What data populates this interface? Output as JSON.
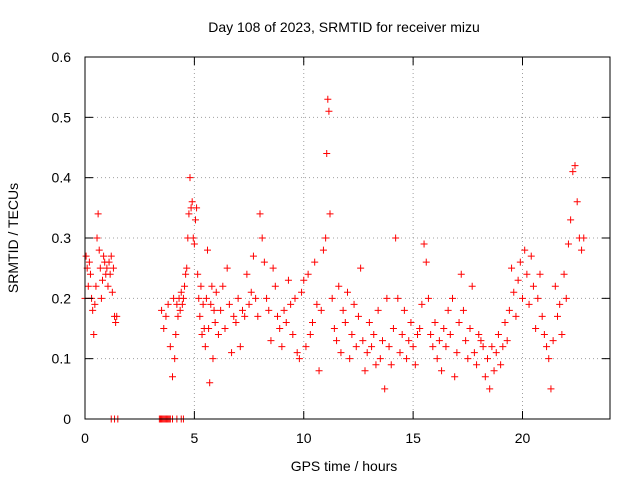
{
  "chart_data": {
    "type": "scatter",
    "title": "Day 108 of 2023, SRMTID for receiver mizu",
    "xlabel": "GPS time / hours",
    "ylabel": "SRMTID / TECUs",
    "xlim": [
      0,
      24
    ],
    "ylim": [
      0,
      0.6
    ],
    "xticks": [
      0,
      5,
      10,
      15,
      20
    ],
    "xtick_labels": [
      "0",
      "5",
      "10",
      "15",
      "20"
    ],
    "yticks": [
      0,
      0.1,
      0.2,
      0.3,
      0.4,
      0.5,
      0.6
    ],
    "ytick_labels": [
      "0",
      "0.1",
      "0.2",
      "0.3",
      "0.4",
      "0.5",
      "0.6"
    ],
    "grid": true,
    "marker": "+",
    "series_color": "#ff0000",
    "series": [
      {
        "name": "SRMTID",
        "x": [
          0.0,
          0.05,
          0.1,
          0.15,
          0.2,
          0.25,
          0.3,
          0.35,
          0.4,
          0.45,
          0.5,
          0.55,
          0.6,
          0.65,
          0.7,
          0.75,
          0.8,
          0.85,
          0.9,
          0.95,
          1.0,
          1.05,
          1.1,
          1.15,
          1.2,
          1.25,
          1.3,
          1.35,
          1.4,
          1.45,
          1.2,
          1.35,
          1.5,
          3.4,
          3.45,
          3.5,
          3.55,
          3.6,
          3.65,
          3.7,
          3.75,
          3.8,
          3.85,
          3.9,
          4.0,
          4.2,
          4.4,
          4.5,
          3.5,
          3.6,
          3.7,
          3.8,
          3.9,
          4.0,
          4.05,
          4.1,
          4.15,
          4.2,
          4.25,
          4.3,
          4.35,
          4.4,
          4.45,
          4.5,
          4.55,
          4.6,
          4.65,
          4.7,
          4.75,
          4.8,
          4.85,
          4.9,
          4.95,
          5.0,
          5.05,
          5.1,
          5.15,
          5.2,
          5.25,
          5.3,
          5.35,
          5.4,
          5.45,
          5.5,
          5.55,
          5.6,
          5.65,
          5.7,
          5.75,
          5.8,
          5.85,
          5.9,
          5.95,
          6.0,
          6.1,
          6.2,
          6.3,
          6.4,
          6.5,
          6.6,
          6.7,
          6.8,
          6.9,
          7.0,
          7.1,
          7.2,
          7.3,
          7.4,
          7.5,
          7.6,
          7.7,
          7.8,
          7.9,
          8.0,
          8.1,
          8.2,
          8.3,
          8.4,
          8.5,
          8.6,
          8.7,
          8.8,
          8.9,
          9.0,
          9.1,
          9.2,
          9.3,
          9.4,
          9.5,
          9.6,
          9.7,
          9.8,
          9.9,
          10.0,
          10.1,
          10.2,
          10.3,
          10.4,
          10.5,
          10.6,
          10.7,
          10.8,
          10.9,
          11.0,
          11.05,
          11.1,
          11.15,
          11.2,
          11.3,
          11.4,
          11.5,
          11.6,
          11.7,
          11.8,
          11.9,
          12.0,
          12.1,
          12.2,
          12.3,
          12.4,
          12.5,
          12.6,
          12.7,
          12.8,
          12.9,
          13.0,
          13.1,
          13.2,
          13.3,
          13.4,
          13.5,
          13.6,
          13.7,
          13.8,
          13.9,
          14.0,
          14.1,
          14.2,
          14.3,
          14.4,
          14.5,
          14.6,
          14.7,
          14.8,
          14.9,
          15.0,
          15.1,
          15.2,
          15.3,
          15.4,
          15.5,
          15.6,
          15.7,
          15.8,
          15.9,
          16.0,
          16.1,
          16.2,
          16.3,
          16.4,
          16.5,
          16.6,
          16.7,
          16.8,
          16.9,
          17.0,
          17.1,
          17.2,
          17.3,
          17.4,
          17.5,
          17.6,
          17.7,
          17.8,
          17.9,
          18.0,
          18.1,
          18.2,
          18.3,
          18.4,
          18.5,
          18.6,
          18.7,
          18.8,
          18.9,
          19.0,
          19.1,
          19.2,
          19.3,
          19.4,
          19.5,
          19.6,
          19.7,
          19.8,
          19.9,
          20.0,
          20.1,
          20.2,
          20.3,
          20.4,
          20.5,
          20.6,
          20.7,
          20.8,
          20.9,
          21.0,
          21.1,
          21.2,
          21.3,
          21.4,
          21.5,
          21.6,
          21.7,
          21.8,
          21.9,
          22.0,
          22.1,
          22.2,
          22.3,
          22.4,
          22.5,
          22.6,
          22.7,
          22.8
        ],
        "y": [
          0.2,
          0.27,
          0.25,
          0.22,
          0.26,
          0.24,
          0.2,
          0.18,
          0.14,
          0.19,
          0.22,
          0.3,
          0.34,
          0.28,
          0.25,
          0.2,
          0.23,
          0.27,
          0.26,
          0.24,
          0.25,
          0.22,
          0.26,
          0.24,
          0.27,
          0.21,
          0.25,
          0.17,
          0.16,
          0.17,
          0.0,
          0.0,
          0.0,
          0.0,
          0.0,
          0.0,
          0.0,
          0.0,
          0.0,
          0.0,
          0.0,
          0.0,
          0.0,
          0.0,
          0.0,
          0.0,
          0.0,
          0.0,
          0.18,
          0.15,
          0.17,
          0.19,
          0.12,
          0.07,
          0.2,
          0.1,
          0.14,
          0.19,
          0.17,
          0.2,
          0.18,
          0.21,
          0.19,
          0.2,
          0.22,
          0.24,
          0.25,
          0.3,
          0.34,
          0.4,
          0.35,
          0.36,
          0.3,
          0.29,
          0.33,
          0.35,
          0.24,
          0.2,
          0.17,
          0.22,
          0.14,
          0.19,
          0.15,
          0.12,
          0.2,
          0.28,
          0.15,
          0.06,
          0.19,
          0.22,
          0.1,
          0.18,
          0.16,
          0.21,
          0.14,
          0.18,
          0.22,
          0.15,
          0.25,
          0.19,
          0.11,
          0.17,
          0.16,
          0.2,
          0.12,
          0.18,
          0.17,
          0.24,
          0.19,
          0.21,
          0.27,
          0.2,
          0.17,
          0.34,
          0.3,
          0.26,
          0.2,
          0.18,
          0.13,
          0.25,
          0.22,
          0.17,
          0.15,
          0.12,
          0.18,
          0.16,
          0.23,
          0.19,
          0.14,
          0.2,
          0.11,
          0.1,
          0.21,
          0.23,
          0.12,
          0.24,
          0.14,
          0.16,
          0.26,
          0.19,
          0.08,
          0.18,
          0.28,
          0.3,
          0.44,
          0.53,
          0.51,
          0.34,
          0.2,
          0.15,
          0.13,
          0.22,
          0.11,
          0.18,
          0.16,
          0.21,
          0.1,
          0.14,
          0.19,
          0.12,
          0.17,
          0.25,
          0.13,
          0.08,
          0.11,
          0.16,
          0.12,
          0.14,
          0.09,
          0.18,
          0.1,
          0.13,
          0.05,
          0.2,
          0.12,
          0.09,
          0.15,
          0.3,
          0.2,
          0.11,
          0.14,
          0.18,
          0.1,
          0.13,
          0.16,
          0.12,
          0.09,
          0.14,
          0.15,
          0.19,
          0.29,
          0.26,
          0.2,
          0.14,
          0.12,
          0.16,
          0.1,
          0.13,
          0.08,
          0.15,
          0.12,
          0.18,
          0.14,
          0.2,
          0.07,
          0.11,
          0.16,
          0.24,
          0.18,
          0.13,
          0.1,
          0.15,
          0.22,
          0.11,
          0.09,
          0.14,
          0.13,
          0.12,
          0.07,
          0.1,
          0.05,
          0.12,
          0.08,
          0.11,
          0.14,
          0.09,
          0.12,
          0.16,
          0.13,
          0.18,
          0.25,
          0.21,
          0.17,
          0.23,
          0.26,
          0.2,
          0.28,
          0.24,
          0.19,
          0.27,
          0.22,
          0.15,
          0.2,
          0.24,
          0.17,
          0.14,
          0.12,
          0.1,
          0.05,
          0.13,
          0.22,
          0.17,
          0.19,
          0.14,
          0.24,
          0.2,
          0.29,
          0.33,
          0.41,
          0.42,
          0.36,
          0.3,
          0.28,
          0.3
        ]
      }
    ]
  }
}
